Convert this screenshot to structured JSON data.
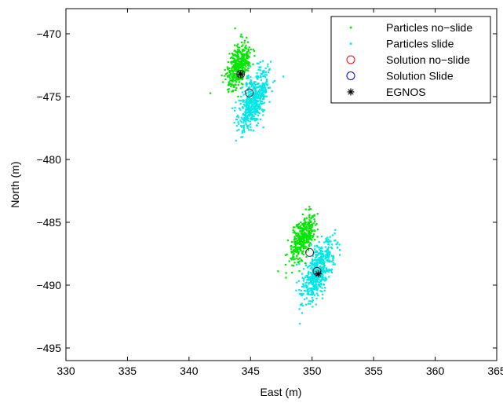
{
  "chart_data": {
    "type": "scatter",
    "xlabel": "East (m)",
    "ylabel": "North (m)",
    "xlim": [
      330,
      365
    ],
    "ylim": [
      -496,
      -468
    ],
    "xticks": [
      330,
      335,
      340,
      345,
      350,
      355,
      360,
      365
    ],
    "yticks": [
      -470,
      -475,
      -480,
      -485,
      -490,
      -495
    ],
    "xtick_labels": [
      "330",
      "335",
      "340",
      "345",
      "350",
      "355",
      "360",
      "365"
    ],
    "ytick_labels": [
      "−470",
      "−475",
      "−480",
      "−485",
      "−490",
      "−495"
    ],
    "grid": false,
    "legend_position": "top-right",
    "colors": {
      "particles_noslide": "#00e600",
      "particles_slide": "#00e6e6",
      "solution_noslide": "#ff0000",
      "solution_slide": "#0000ff",
      "egnos": "#000000"
    },
    "legend": [
      {
        "label": "Particles no−slide",
        "marker": "dot",
        "color": "#00e600"
      },
      {
        "label": "Particles slide",
        "marker": "dot",
        "color": "#00e6e6"
      },
      {
        "label": "Solution no−slide",
        "marker": "circle",
        "color": "#ff0000"
      },
      {
        "label": "Solution Slide",
        "marker": "circle",
        "color": "#0000ff"
      },
      {
        "label": "EGNOS",
        "marker": "asterisk",
        "color": "#000000"
      }
    ],
    "particle_clouds": [
      {
        "name": "Particles no−slide",
        "clusters": [
          {
            "center": [
              344.0,
              -472.6
            ],
            "spread": [
              0.75,
              1.6
            ],
            "angle_deg": -62,
            "count": 380
          },
          {
            "center": [
              349.2,
              -486.3
            ],
            "spread": [
              0.7,
              1.6
            ],
            "angle_deg": -62,
            "count": 360
          }
        ]
      },
      {
        "name": "Particles slide",
        "clusters": [
          {
            "center": [
              345.3,
              -475.3
            ],
            "spread": [
              0.9,
              2.0
            ],
            "angle_deg": -62,
            "count": 520
          },
          {
            "center": [
              350.5,
              -488.8
            ],
            "spread": [
              0.85,
              2.0
            ],
            "angle_deg": -62,
            "count": 520
          }
        ]
      }
    ],
    "series": [
      {
        "name": "Solution no−slide",
        "marker": "circle",
        "points": [
          [
            344.2,
            -473.2
          ],
          [
            349.8,
            -487.4
          ]
        ]
      },
      {
        "name": "Solution Slide",
        "marker": "circle",
        "points": [
          [
            344.9,
            -474.7
          ],
          [
            350.4,
            -488.9
          ]
        ]
      },
      {
        "name": "EGNOS",
        "marker": "asterisk",
        "points": [
          [
            344.2,
            -473.2
          ],
          [
            350.5,
            -489.1
          ]
        ]
      }
    ]
  }
}
